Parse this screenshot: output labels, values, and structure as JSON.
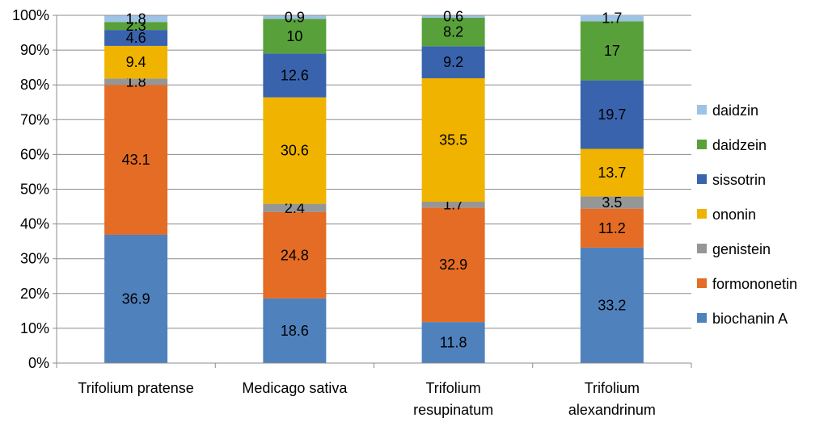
{
  "chart_data": {
    "type": "bar",
    "stacked": true,
    "percent": true,
    "categories": [
      [
        "Trifolium pratense"
      ],
      [
        "Medicago sativa"
      ],
      [
        "Trifolium",
        "resupinatum"
      ],
      [
        "Trifolium",
        "alexandrinum"
      ]
    ],
    "series": [
      {
        "name": "biochanin A",
        "color": "#4F81BD",
        "values": [
          36.9,
          18.6,
          11.8,
          33.2
        ]
      },
      {
        "name": "formononetin",
        "color": "#E46C24",
        "values": [
          43.1,
          24.8,
          32.9,
          11.2
        ]
      },
      {
        "name": "genistein",
        "color": "#969696",
        "values": [
          1.8,
          2.4,
          1.7,
          3.5
        ]
      },
      {
        "name": "ononin",
        "color": "#F0B400",
        "values": [
          9.4,
          30.6,
          35.5,
          13.7
        ]
      },
      {
        "name": "sissotrin",
        "color": "#3A63AD",
        "values": [
          4.6,
          12.6,
          9.2,
          19.7
        ]
      },
      {
        "name": "daidzein",
        "color": "#58A13A",
        "values": [
          2.3,
          10.0,
          8.2,
          17.0
        ]
      },
      {
        "name": "daidzin",
        "color": "#9DC3E6",
        "values": [
          1.8,
          0.9,
          0.6,
          1.7
        ]
      }
    ],
    "ylim": [
      0,
      100
    ],
    "yticks": [
      "0%",
      "10%",
      "20%",
      "30%",
      "40%",
      "50%",
      "60%",
      "70%",
      "80%",
      "90%",
      "100%"
    ],
    "grid": true,
    "legend": "right",
    "title": "",
    "xlabel": "",
    "ylabel": ""
  }
}
